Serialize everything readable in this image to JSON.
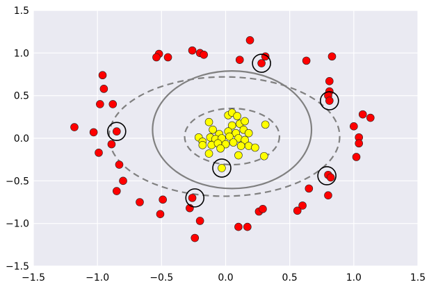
{
  "chart_data": {
    "type": "scatter",
    "xlim": [
      -1.5,
      1.5
    ],
    "ylim": [
      -1.5,
      1.5
    ],
    "x_ticks": [
      -1.5,
      -1.0,
      -0.5,
      0.0,
      0.5,
      1.0,
      1.5
    ],
    "y_ticks": [
      -1.5,
      -1.0,
      -0.5,
      0.0,
      0.5,
      1.0,
      1.5
    ],
    "x_tick_labels": [
      "−1.5",
      "−1.0",
      "−0.5",
      "0.0",
      "0.5",
      "1.0",
      "1.5"
    ],
    "y_tick_labels": [
      "−1.5",
      "−1.0",
      "−0.5",
      "0.0",
      "0.5",
      "1.0",
      "1.5"
    ],
    "grid": true,
    "background_color": "#eaeaf2",
    "grid_color": "#ffffff",
    "series": [
      {
        "color": "#ff0000",
        "points": [
          [
            0.19,
            1.15
          ],
          [
            -0.26,
            1.03
          ],
          [
            -0.2,
            1.0
          ],
          [
            -0.17,
            0.98
          ],
          [
            -0.52,
            0.99
          ],
          [
            -0.54,
            0.95
          ],
          [
            -0.45,
            0.95
          ],
          [
            0.11,
            0.92
          ],
          [
            0.31,
            0.96
          ],
          [
            0.28,
            0.88
          ],
          [
            0.63,
            0.91
          ],
          [
            0.83,
            0.96
          ],
          [
            0.81,
            0.67
          ],
          [
            0.81,
            0.55
          ],
          [
            0.8,
            0.5
          ],
          [
            0.81,
            0.44
          ],
          [
            -0.96,
            0.74
          ],
          [
            -0.95,
            0.58
          ],
          [
            -0.98,
            0.4
          ],
          [
            -0.88,
            0.4
          ],
          [
            1.07,
            0.28
          ],
          [
            1.13,
            0.24
          ],
          [
            1.0,
            0.14
          ],
          [
            1.04,
            0.01
          ],
          [
            1.04,
            -0.06
          ],
          [
            1.02,
            -0.22
          ],
          [
            -1.18,
            0.13
          ],
          [
            -1.03,
            0.07
          ],
          [
            -0.85,
            0.08
          ],
          [
            -0.89,
            -0.07
          ],
          [
            -0.99,
            -0.17
          ],
          [
            -0.83,
            -0.31
          ],
          [
            -0.8,
            -0.5
          ],
          [
            -0.85,
            -0.62
          ],
          [
            0.8,
            -0.43
          ],
          [
            0.82,
            -0.46
          ],
          [
            0.8,
            -0.67
          ],
          [
            0.65,
            -0.59
          ],
          [
            0.6,
            -0.79
          ],
          [
            0.56,
            -0.85
          ],
          [
            -0.67,
            -0.75
          ],
          [
            -0.49,
            -0.72
          ],
          [
            -0.51,
            -0.89
          ],
          [
            -0.26,
            -0.7
          ],
          [
            -0.28,
            -0.82
          ],
          [
            -0.2,
            -0.97
          ],
          [
            -0.24,
            -1.17
          ],
          [
            0.1,
            -1.04
          ],
          [
            0.17,
            -1.04
          ],
          [
            0.26,
            -0.86
          ],
          [
            0.29,
            -0.83
          ]
        ]
      },
      {
        "color": "#ffff00",
        "points": [
          [
            0.02,
            0.27
          ],
          [
            0.05,
            0.3
          ],
          [
            0.09,
            0.26
          ],
          [
            -0.13,
            0.19
          ],
          [
            0.11,
            0.17
          ],
          [
            0.05,
            0.15
          ],
          [
            0.15,
            0.2
          ],
          [
            0.14,
            0.1
          ],
          [
            0.02,
            0.08
          ],
          [
            -0.1,
            0.1
          ],
          [
            -0.05,
            0.05
          ],
          [
            0.08,
            0.06
          ],
          [
            0.18,
            0.06
          ],
          [
            0.31,
            0.16
          ],
          [
            -0.21,
            0.01
          ],
          [
            -0.18,
            -0.04
          ],
          [
            -0.12,
            0.01
          ],
          [
            -0.08,
            -0.01
          ],
          [
            -0.03,
            0.0
          ],
          [
            0.03,
            0.02
          ],
          [
            0.1,
            0.0
          ],
          [
            0.15,
            -0.02
          ],
          [
            -0.18,
            -0.08
          ],
          [
            -0.11,
            -0.08
          ],
          [
            -0.06,
            -0.06
          ],
          [
            0.0,
            -0.07
          ],
          [
            0.06,
            -0.05
          ],
          [
            0.12,
            -0.09
          ],
          [
            0.18,
            -0.09
          ],
          [
            0.23,
            -0.11
          ],
          [
            -0.13,
            -0.18
          ],
          [
            -0.04,
            -0.12
          ],
          [
            0.1,
            -0.2
          ],
          [
            0.3,
            -0.21
          ],
          [
            -0.03,
            -0.35
          ]
        ]
      }
    ],
    "support_vectors": [
      [
        0.28,
        0.88
      ],
      [
        0.81,
        0.44
      ],
      [
        -0.85,
        0.08
      ],
      [
        -0.03,
        -0.35
      ],
      [
        0.79,
        -0.44
      ],
      [
        -0.24,
        -0.7
      ]
    ],
    "decision_boundary": {
      "center": [
        0.05,
        0.1
      ],
      "rx": 0.62,
      "ry": 0.69,
      "style": "solid",
      "color": "#808080"
    },
    "margins": [
      {
        "center": [
          0.05,
          0.02
        ],
        "rx": 0.37,
        "ry": 0.33,
        "style": "dashed",
        "color": "#808080"
      },
      {
        "center": [
          -0.01,
          0.02
        ],
        "rx": 0.9,
        "ry": 0.7,
        "style": "dashed",
        "color": "#808080"
      }
    ]
  }
}
